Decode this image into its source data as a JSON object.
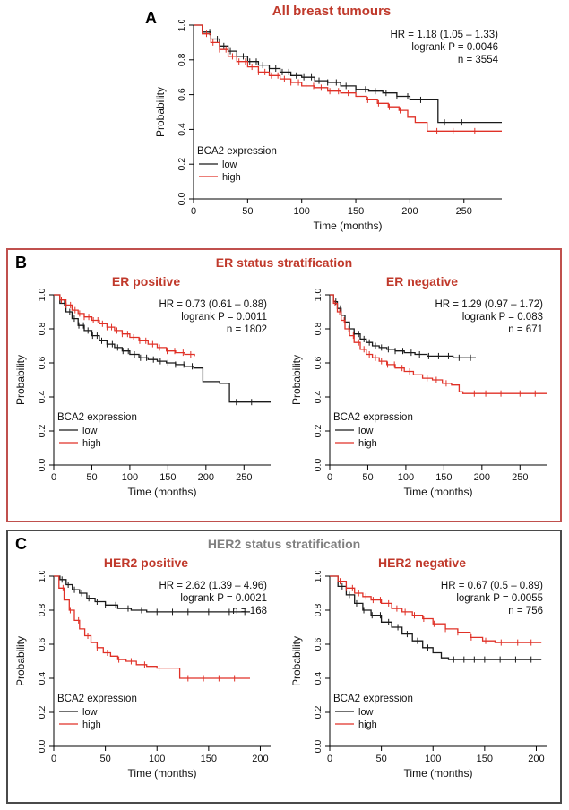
{
  "figure": {
    "panels": {
      "a": {
        "label": "A"
      },
      "b": {
        "label": "B",
        "title": "ER status stratification"
      },
      "c": {
        "label": "C",
        "title": "HER2 status stratification"
      }
    }
  },
  "colors": {
    "red_curve": "#e03127",
    "black_curve": "#1a1a1a",
    "red_title": "#c0392b",
    "gray_title": "#808080",
    "panel_b_border": "#c0504d",
    "panel_c_border": "#4a4a4a",
    "axis": "#000000",
    "text": "#111111"
  },
  "chart_data": [
    {
      "type": "line",
      "id": "all-breast-tumours",
      "title": "All breast tumours",
      "annotation": [
        "HR = 1.18 (1.05 – 1.33)",
        "logrank P = 0.0046",
        "n = 3554"
      ],
      "xlabel": "Time (months)",
      "ylabel": "Probability",
      "xlim": [
        0,
        285
      ],
      "xticks": [
        0,
        50,
        100,
        150,
        200,
        250
      ],
      "ylim": [
        0,
        1
      ],
      "yticks": [
        0,
        0.2,
        0.4,
        0.6,
        0.8,
        1.0
      ],
      "legend": {
        "title": "BCA2 expression",
        "entries": [
          "low",
          "high"
        ]
      },
      "series": [
        {
          "name": "low",
          "color": "black_curve",
          "x": [
            0,
            8,
            16,
            24,
            32,
            40,
            50,
            60,
            70,
            80,
            90,
            100,
            112,
            124,
            136,
            150,
            162,
            175,
            188,
            200,
            224,
            226,
            285
          ],
          "y": [
            1.0,
            0.96,
            0.92,
            0.88,
            0.85,
            0.82,
            0.79,
            0.77,
            0.75,
            0.73,
            0.71,
            0.7,
            0.68,
            0.67,
            0.65,
            0.63,
            0.62,
            0.61,
            0.59,
            0.57,
            0.57,
            0.44,
            0.44
          ],
          "censor_x": [
            15,
            22,
            28,
            34,
            40,
            46,
            52,
            58,
            64,
            70,
            76,
            82,
            88,
            95,
            102,
            109,
            116,
            124,
            132,
            141,
            150,
            159,
            168,
            178,
            188,
            198,
            210,
            232,
            248
          ]
        },
        {
          "name": "high",
          "color": "red_curve",
          "x": [
            0,
            8,
            16,
            24,
            32,
            40,
            50,
            60,
            70,
            80,
            90,
            100,
            112,
            124,
            136,
            150,
            160,
            170,
            180,
            190,
            198,
            205,
            216,
            285
          ],
          "y": [
            1.0,
            0.95,
            0.9,
            0.86,
            0.82,
            0.79,
            0.76,
            0.73,
            0.71,
            0.69,
            0.67,
            0.65,
            0.64,
            0.62,
            0.61,
            0.59,
            0.57,
            0.55,
            0.53,
            0.51,
            0.47,
            0.44,
            0.39,
            0.39
          ],
          "censor_x": [
            12,
            18,
            24,
            30,
            36,
            42,
            48,
            54,
            60,
            66,
            72,
            78,
            84,
            90,
            97,
            104,
            111,
            118,
            126,
            134,
            143,
            152,
            161,
            171,
            181,
            191,
            225,
            240,
            260
          ]
        }
      ]
    },
    {
      "type": "line",
      "id": "er-positive",
      "title": "ER positive",
      "annotation": [
        "HR = 0.73 (0.61 – 0.88)",
        "logrank P = 0.0011",
        "n = 1802"
      ],
      "xlabel": "Time (months)",
      "ylabel": "Probability",
      "xlim": [
        0,
        285
      ],
      "xticks": [
        0,
        50,
        100,
        150,
        200,
        250
      ],
      "ylim": [
        0,
        1
      ],
      "yticks": [
        0,
        0.2,
        0.4,
        0.6,
        0.8,
        1.0
      ],
      "legend": {
        "title": "BCA2 expression",
        "entries": [
          "low",
          "high"
        ]
      },
      "series": [
        {
          "name": "low",
          "color": "black_curve",
          "x": [
            0,
            8,
            16,
            24,
            32,
            40,
            50,
            60,
            70,
            80,
            90,
            100,
            112,
            124,
            136,
            148,
            160,
            172,
            184,
            196,
            205,
            218,
            231,
            285
          ],
          "y": [
            1.0,
            0.95,
            0.9,
            0.86,
            0.82,
            0.79,
            0.76,
            0.73,
            0.71,
            0.69,
            0.67,
            0.65,
            0.63,
            0.62,
            0.61,
            0.6,
            0.59,
            0.58,
            0.57,
            0.49,
            0.49,
            0.48,
            0.37,
            0.37
          ],
          "censor_x": [
            14,
            21,
            27,
            33,
            39,
            45,
            51,
            57,
            63,
            70,
            77,
            84,
            91,
            98,
            106,
            114,
            122,
            131,
            140,
            150,
            160,
            171,
            182,
            240,
            260
          ]
        },
        {
          "name": "high",
          "color": "red_curve",
          "x": [
            0,
            8,
            16,
            24,
            32,
            40,
            50,
            60,
            70,
            80,
            90,
            100,
            112,
            124,
            136,
            148,
            160,
            172,
            185
          ],
          "y": [
            1.0,
            0.97,
            0.94,
            0.91,
            0.89,
            0.87,
            0.85,
            0.83,
            0.81,
            0.79,
            0.77,
            0.75,
            0.73,
            0.71,
            0.69,
            0.67,
            0.66,
            0.65,
            0.64
          ],
          "censor_x": [
            10,
            16,
            22,
            28,
            34,
            40,
            46,
            52,
            58,
            64,
            70,
            76,
            83,
            90,
            97,
            105,
            113,
            121,
            130,
            139,
            149,
            159,
            170,
            180
          ]
        }
      ]
    },
    {
      "type": "line",
      "id": "er-negative",
      "title": "ER negative",
      "annotation": [
        "HR = 1.29 (0.97 – 1.72)",
        "logrank P = 0.083",
        "n = 671"
      ],
      "xlabel": "Time (months)",
      "ylabel": "Probability",
      "xlim": [
        0,
        285
      ],
      "xticks": [
        0,
        50,
        100,
        150,
        200,
        250
      ],
      "ylim": [
        0,
        1
      ],
      "yticks": [
        0,
        0.2,
        0.4,
        0.6,
        0.8,
        1.0
      ],
      "legend": {
        "title": "BCA2 expression",
        "entries": [
          "low",
          "high"
        ]
      },
      "series": [
        {
          "name": "low",
          "color": "black_curve",
          "x": [
            0,
            5,
            10,
            15,
            20,
            26,
            32,
            40,
            48,
            56,
            65,
            75,
            86,
            98,
            112,
            128,
            145,
            162,
            192
          ],
          "y": [
            1.0,
            0.96,
            0.92,
            0.88,
            0.84,
            0.8,
            0.77,
            0.74,
            0.72,
            0.7,
            0.69,
            0.68,
            0.67,
            0.66,
            0.65,
            0.64,
            0.64,
            0.63,
            0.63
          ],
          "censor_x": [
            8,
            14,
            20,
            26,
            32,
            38,
            45,
            52,
            60,
            68,
            77,
            86,
            96,
            107,
            118,
            130,
            143,
            156,
            170,
            185
          ]
        },
        {
          "name": "high",
          "color": "red_curve",
          "x": [
            0,
            5,
            10,
            15,
            20,
            26,
            32,
            40,
            48,
            56,
            65,
            75,
            86,
            98,
            110,
            122,
            135,
            148,
            160,
            170,
            175,
            285
          ],
          "y": [
            1.0,
            0.95,
            0.9,
            0.85,
            0.8,
            0.76,
            0.72,
            0.68,
            0.65,
            0.63,
            0.61,
            0.59,
            0.57,
            0.55,
            0.53,
            0.51,
            0.5,
            0.48,
            0.47,
            0.43,
            0.42,
            0.42
          ],
          "censor_x": [
            7,
            13,
            19,
            25,
            31,
            38,
            45,
            52,
            60,
            68,
            76,
            85,
            95,
            105,
            116,
            128,
            140,
            153,
            190,
            205,
            225,
            250,
            270
          ]
        }
      ]
    },
    {
      "type": "line",
      "id": "her2-positive",
      "title": "HER2 positive",
      "annotation": [
        "HR = 2.62 (1.39 – 4.96)",
        "logrank P = 0.0021",
        "n = 168"
      ],
      "xlabel": "Time (months)",
      "ylabel": "Probability",
      "xlim": [
        0,
        210
      ],
      "xticks": [
        0,
        50,
        100,
        150,
        200
      ],
      "ylim": [
        0,
        1
      ],
      "yticks": [
        0,
        0.2,
        0.4,
        0.6,
        0.8,
        1.0
      ],
      "legend": {
        "title": "BCA2 expression",
        "entries": [
          "low",
          "high"
        ]
      },
      "series": [
        {
          "name": "low",
          "color": "black_curve",
          "x": [
            0,
            6,
            12,
            18,
            25,
            32,
            40,
            50,
            62,
            75,
            90,
            110,
            190
          ],
          "y": [
            1.0,
            0.98,
            0.95,
            0.92,
            0.9,
            0.87,
            0.85,
            0.83,
            0.81,
            0.8,
            0.79,
            0.79,
            0.79
          ],
          "censor_x": [
            8,
            14,
            20,
            27,
            34,
            42,
            50,
            60,
            72,
            85,
            100,
            115,
            130,
            150,
            170,
            185
          ]
        },
        {
          "name": "high",
          "color": "red_curve",
          "x": [
            0,
            5,
            10,
            15,
            20,
            25,
            30,
            36,
            42,
            48,
            55,
            62,
            70,
            80,
            90,
            100,
            118,
            122,
            190
          ],
          "y": [
            1.0,
            0.93,
            0.86,
            0.8,
            0.74,
            0.69,
            0.65,
            0.61,
            0.58,
            0.55,
            0.53,
            0.51,
            0.5,
            0.48,
            0.47,
            0.46,
            0.46,
            0.4,
            0.4
          ],
          "censor_x": [
            9,
            16,
            24,
            33,
            42,
            52,
            63,
            75,
            88,
            102,
            130,
            145,
            160,
            175
          ]
        }
      ]
    },
    {
      "type": "line",
      "id": "her2-negative",
      "title": "HER2 negative",
      "annotation": [
        "HR = 0.67 (0.5 – 0.89)",
        "logrank P = 0.0055",
        "n = 756"
      ],
      "xlabel": "Time (months)",
      "ylabel": "Probability",
      "xlim": [
        0,
        210
      ],
      "xticks": [
        0,
        50,
        100,
        150,
        200
      ],
      "ylim": [
        0,
        1
      ],
      "yticks": [
        0,
        0.2,
        0.4,
        0.6,
        0.8,
        1.0
      ],
      "legend": {
        "title": "BCA2 expression",
        "entries": [
          "low",
          "high"
        ]
      },
      "series": [
        {
          "name": "low",
          "color": "black_curve",
          "x": [
            0,
            8,
            16,
            24,
            32,
            40,
            50,
            60,
            70,
            80,
            90,
            100,
            108,
            115,
            205
          ],
          "y": [
            1.0,
            0.94,
            0.89,
            0.84,
            0.8,
            0.77,
            0.73,
            0.7,
            0.66,
            0.62,
            0.58,
            0.55,
            0.52,
            0.51,
            0.51
          ],
          "censor_x": [
            12,
            19,
            26,
            33,
            41,
            49,
            57,
            66,
            75,
            85,
            95,
            120,
            130,
            140,
            150,
            165,
            180,
            195
          ]
        },
        {
          "name": "high",
          "color": "red_curve",
          "x": [
            0,
            8,
            16,
            24,
            32,
            40,
            50,
            60,
            70,
            80,
            90,
            100,
            112,
            124,
            136,
            148,
            160,
            205
          ],
          "y": [
            1.0,
            0.97,
            0.93,
            0.9,
            0.88,
            0.86,
            0.84,
            0.81,
            0.79,
            0.77,
            0.75,
            0.72,
            0.69,
            0.67,
            0.64,
            0.62,
            0.61,
            0.61
          ],
          "censor_x": [
            10,
            16,
            22,
            28,
            35,
            42,
            49,
            57,
            65,
            73,
            82,
            91,
            101,
            112,
            124,
            137,
            151,
            166,
            182,
            195
          ]
        }
      ]
    }
  ]
}
